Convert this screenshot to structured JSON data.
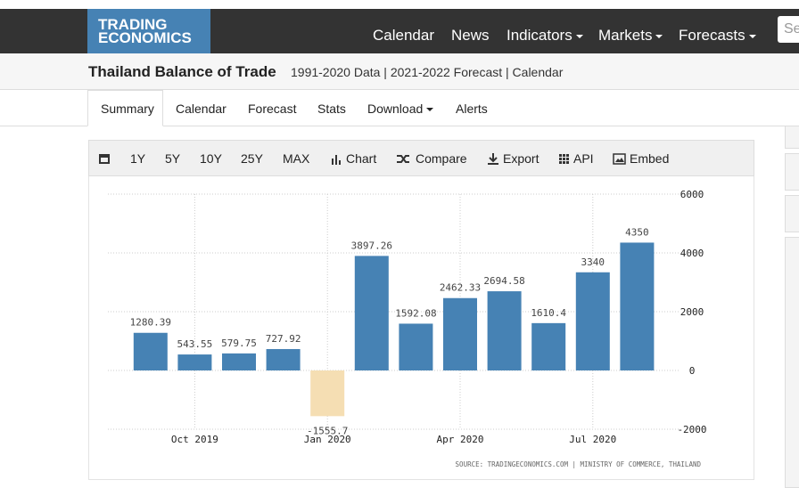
{
  "nav": {
    "logo": [
      "TRADING",
      "ECONOMICS"
    ],
    "links": [
      "Calendar",
      "News",
      "Indicators",
      "Markets",
      "Forecasts"
    ],
    "search": "Se"
  },
  "header": {
    "title": "Thailand Balance of Trade",
    "subtitle": "1991-2020 Data | 2021-2022 Forecast | Calendar"
  },
  "tabs": [
    "Summary",
    "Calendar",
    "Forecast",
    "Stats",
    "Download",
    "Alerts"
  ],
  "toolbar": [
    "1Y",
    "5Y",
    "10Y",
    "25Y",
    "MAX",
    "Chart",
    "Compare",
    "Export",
    "API",
    "Embed"
  ],
  "chart_data": {
    "type": "bar",
    "categories": [
      null,
      "Oct 2019",
      null,
      null,
      "Jan 2020",
      null,
      null,
      "Apr 2020",
      null,
      null,
      "Jul 2020",
      null
    ],
    "values": [
      1280.39,
      543.55,
      579.75,
      727.92,
      -1555.7,
      3897.26,
      1592.08,
      2462.33,
      2694.58,
      1610.4,
      3340,
      4350
    ],
    "color": "#4682b4",
    "negative_color": "#f5deb3",
    "ylim": [
      -2000,
      6000
    ],
    "yticks": [
      -2000,
      0,
      2000,
      4000,
      6000
    ],
    "grid": true,
    "source": "SOURCE: TRADINGECONOMICS.COM | MINISTRY OF COMMERCE, THAILAND"
  }
}
